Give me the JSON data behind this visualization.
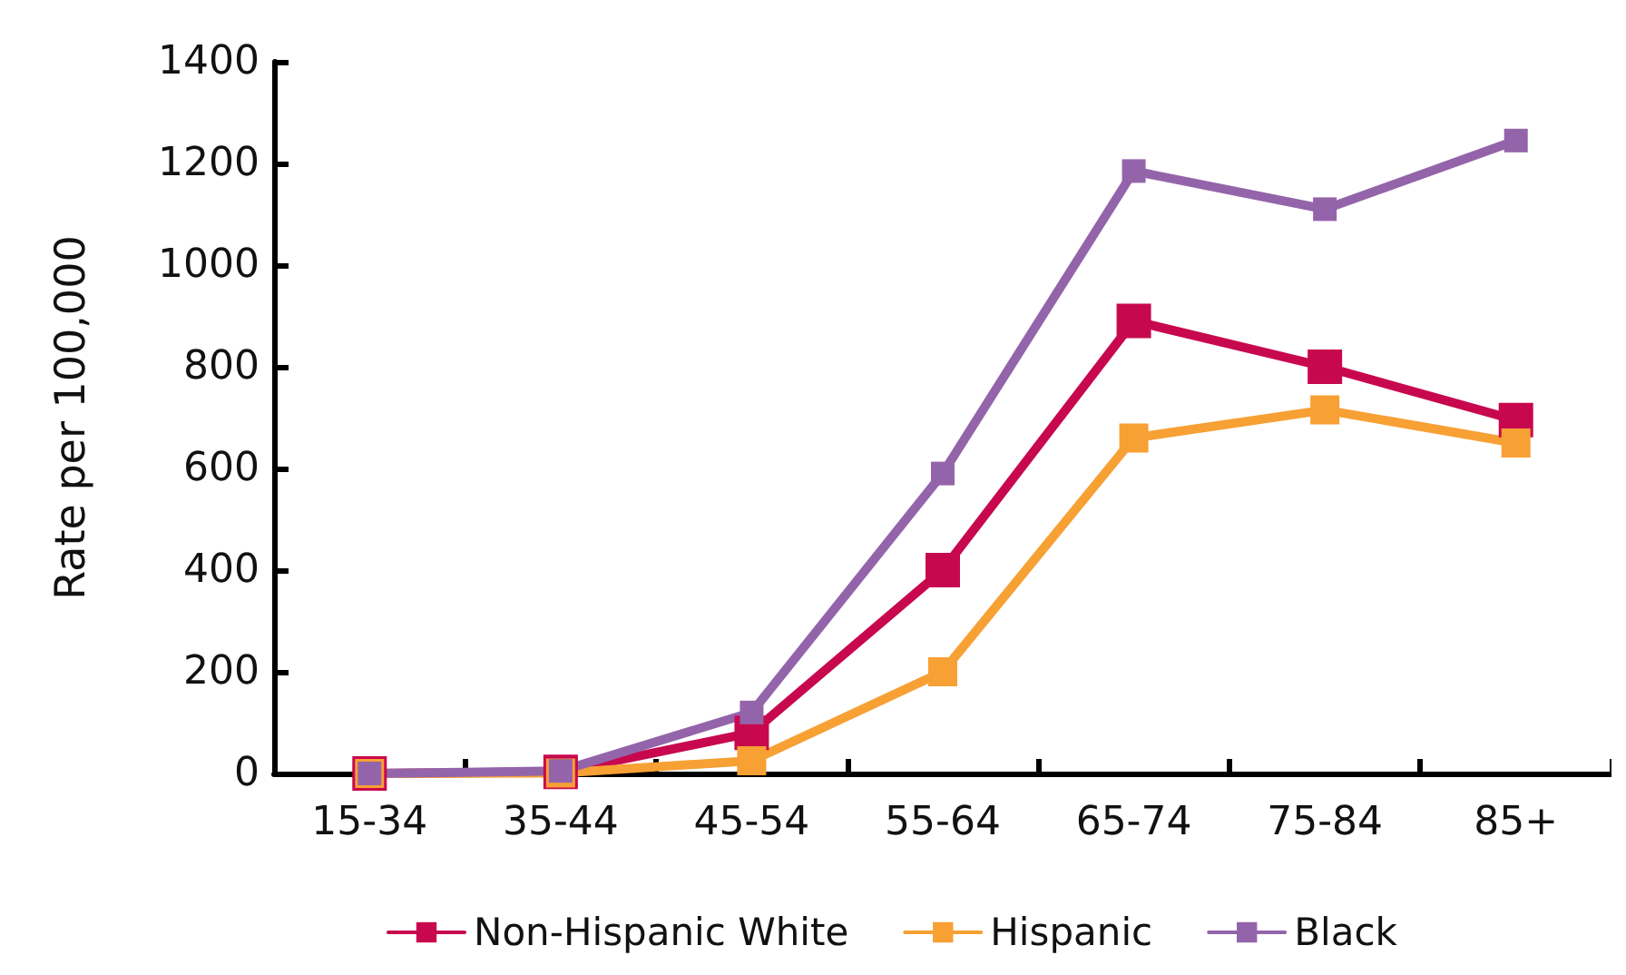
{
  "chart_data": {
    "type": "line",
    "ylabel": "Rate per 100,000",
    "categories": [
      "15-34",
      "35-44",
      "45-54",
      "55-64",
      "65-74",
      "75-84",
      "85+"
    ],
    "series": [
      {
        "name": "Non-Hispanic White",
        "color": "#c8084e",
        "values": [
          0,
          3,
          80,
          400,
          890,
          800,
          695
        ]
      },
      {
        "name": "Hispanic",
        "color": "#f7a034",
        "values": [
          0,
          1,
          25,
          200,
          660,
          715,
          650
        ]
      },
      {
        "name": "Black",
        "color": "#9464aa",
        "values": [
          0,
          5,
          120,
          590,
          1185,
          1110,
          1245
        ]
      }
    ],
    "ylim": [
      0,
      1400
    ],
    "yticks": [
      0,
      200,
      400,
      600,
      800,
      1000,
      1200,
      1400
    ],
    "grid": false,
    "legend": "bottom",
    "marker": "square",
    "line_style": "solid"
  }
}
